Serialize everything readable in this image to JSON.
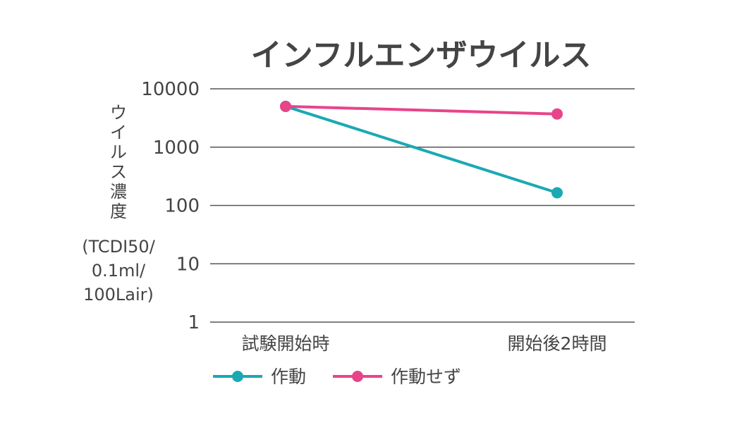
{
  "chart_data": {
    "type": "line",
    "title": "インフルエンザウイルス",
    "ylabel_lines": [
      "ウ",
      "イ",
      "ル",
      "ス",
      "濃",
      "度",
      "(TCDI50/",
      "0.1ml/",
      "100Lair)"
    ],
    "yscale": "log",
    "ylim": [
      1,
      10000
    ],
    "yticks": [
      {
        "value": 10000,
        "label": "10000"
      },
      {
        "value": 1000,
        "label": "1000"
      },
      {
        "value": 100,
        "label": "100"
      },
      {
        "value": 10,
        "label": "10"
      },
      {
        "value": 1,
        "label": "1"
      }
    ],
    "categories": [
      "試験開始時",
      "開始後2時間"
    ],
    "grid": true,
    "legend_position": "bottom-left",
    "series": [
      {
        "name": "作動",
        "color": "#1aa9b3",
        "values": [
          5000,
          165
        ]
      },
      {
        "name": "作動せず",
        "color": "#e8448a",
        "values": [
          5000,
          3700
        ]
      }
    ]
  }
}
